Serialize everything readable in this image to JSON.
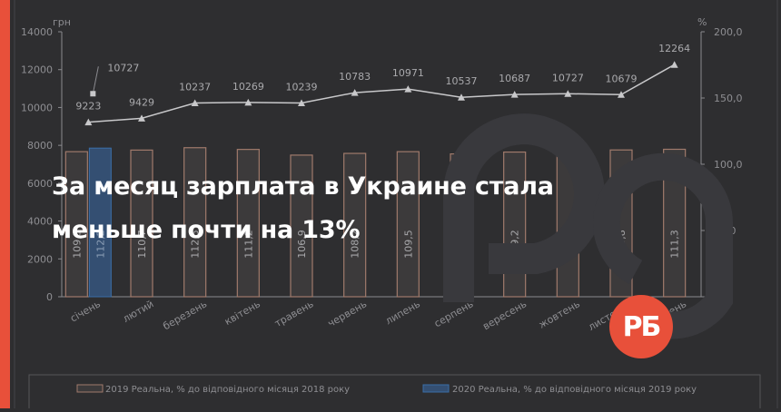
{
  "chart_data": {
    "type": "bar+line",
    "left_axis_unit": "грн",
    "right_axis_unit": "%",
    "left_ylim": [
      0,
      14000
    ],
    "left_ticks": [
      "0",
      "2000",
      "4000",
      "6000",
      "8000",
      "10000",
      "12000",
      "14000"
    ],
    "right_ylim": [
      0,
      200
    ],
    "right_ticks": [
      "0,0",
      "50,0",
      "100,0",
      "150,0",
      "200,0"
    ],
    "categories": [
      "січень",
      "лютий",
      "березень",
      "квітень",
      "травень",
      "червень",
      "липень",
      "серпень",
      "вересень",
      "жовтень",
      "листопад",
      "грудень"
    ],
    "bar_series": [
      {
        "name": "2019 Реальна, % до відповідного місяця 2018 року",
        "color": "#a07a6b",
        "values": [
          109.5,
          110.7,
          112.5,
          111.2,
          106.9,
          108.2,
          109.5,
          107.8,
          109.2,
          109.2,
          110.8,
          111.3
        ],
        "labels": [
          "109,5",
          "110,7",
          "112,5",
          "111,2",
          "106,9",
          "108,2",
          "109,5",
          "107,8",
          "109,2",
          "109,2",
          "110,8",
          "111,3"
        ]
      },
      {
        "name": "2020 Реальна, % до відповідного місяця 2019 року",
        "color": "#3a6ea8",
        "values": [
          112.2
        ],
        "labels": [
          "112,2"
        ]
      }
    ],
    "line_series": [
      {
        "name": "2019",
        "marker": "triangle",
        "values": [
          9223,
          9429,
          10237,
          10269,
          10239,
          10783,
          10971,
          10537,
          10687,
          10727,
          10679,
          12264
        ]
      },
      {
        "name": "2020",
        "marker": "square",
        "values": [
          10727
        ]
      }
    ],
    "line_labels": [
      "9223",
      "9429",
      "10237",
      "10269",
      "10239",
      "10783",
      "10971",
      "10537",
      "10687",
      "10727",
      "10679",
      "12264"
    ],
    "line2020_label": "10727",
    "legend_position": "bottom",
    "grid": false
  },
  "headline": "За месяц зарплата в Украине стала меньше почти на 13%",
  "logo_text": "РБ",
  "colors": {
    "accent": "#e8503a",
    "background": "#2e2e30"
  }
}
